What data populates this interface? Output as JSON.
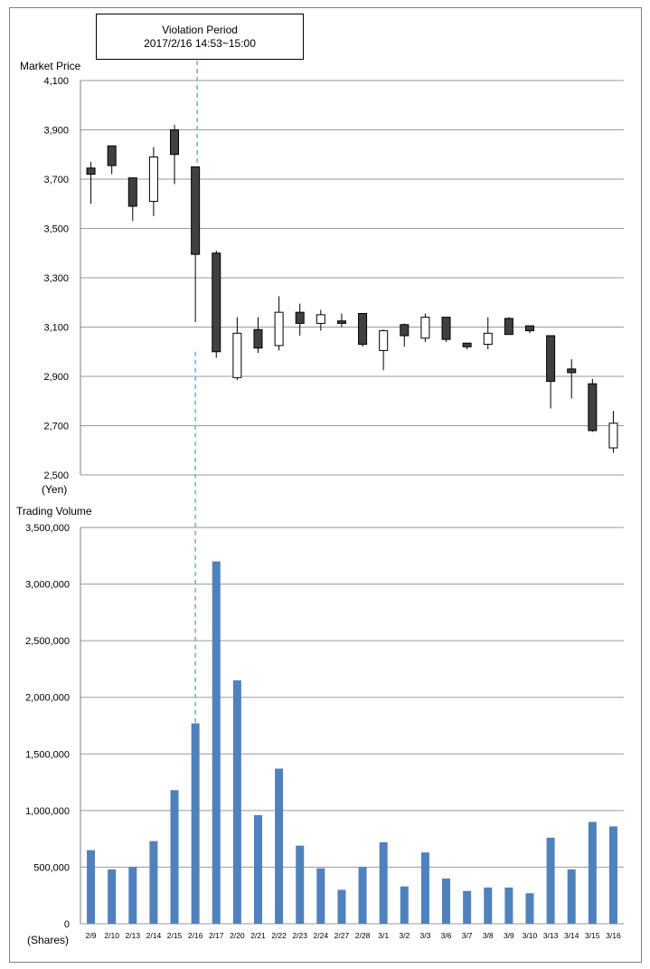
{
  "annotation": {
    "line1": "Violation Period",
    "line2": "2017/2/16  14:53~15:00"
  },
  "chart_data": [
    {
      "type": "candlestick",
      "ylabel": "Market Price",
      "yunit": "(Yen)",
      "ylim": [
        2500,
        4100
      ],
      "yticks": [
        2500,
        2700,
        2900,
        3100,
        3300,
        3500,
        3700,
        3900,
        4100
      ],
      "ytick_labels": [
        "2,500",
        "2,700",
        "2,900",
        "3,100",
        "3,300",
        "3,500",
        "3,700",
        "3,900",
        "4,100"
      ],
      "grid": true,
      "categories": [
        "2/9",
        "2/10",
        "2/13",
        "2/14",
        "2/15",
        "2/16",
        "2/17",
        "2/20",
        "2/21",
        "2/22",
        "2/23",
        "2/24",
        "2/27",
        "2/28",
        "3/1",
        "3/2",
        "3/3",
        "3/6",
        "3/7",
        "3/8",
        "3/9",
        "3/10",
        "3/13",
        "3/14",
        "3/15",
        "3/16"
      ],
      "ohlc": [
        {
          "open": 3745,
          "high": 3770,
          "low": 3600,
          "close": 3720
        },
        {
          "open": 3835,
          "high": 3835,
          "low": 3720,
          "close": 3755
        },
        {
          "open": 3705,
          "high": 3705,
          "low": 3530,
          "close": 3590
        },
        {
          "open": 3610,
          "high": 3830,
          "low": 3550,
          "close": 3790
        },
        {
          "open": 3900,
          "high": 3920,
          "low": 3680,
          "close": 3800
        },
        {
          "open": 3750,
          "high": 3750,
          "low": 3120,
          "close": 3395
        },
        {
          "open": 3400,
          "high": 3410,
          "low": 2975,
          "close": 3000
        },
        {
          "open": 2895,
          "high": 3140,
          "low": 2885,
          "close": 3075
        },
        {
          "open": 3090,
          "high": 3140,
          "low": 2995,
          "close": 3015
        },
        {
          "open": 3025,
          "high": 3225,
          "low": 3005,
          "close": 3160
        },
        {
          "open": 3160,
          "high": 3195,
          "low": 3065,
          "close": 3115
        },
        {
          "open": 3115,
          "high": 3170,
          "low": 3085,
          "close": 3150
        },
        {
          "open": 3125,
          "high": 3155,
          "low": 3100,
          "close": 3115
        },
        {
          "open": 3155,
          "high": 3155,
          "low": 3020,
          "close": 3030
        },
        {
          "open": 3005,
          "high": 3090,
          "low": 2925,
          "close": 3085
        },
        {
          "open": 3110,
          "high": 3115,
          "low": 3020,
          "close": 3065
        },
        {
          "open": 3055,
          "high": 3155,
          "low": 3040,
          "close": 3140
        },
        {
          "open": 3140,
          "high": 3140,
          "low": 3040,
          "close": 3050
        },
        {
          "open": 3035,
          "high": 3035,
          "low": 3010,
          "close": 3020
        },
        {
          "open": 3030,
          "high": 3140,
          "low": 3010,
          "close": 3075
        },
        {
          "open": 3135,
          "high": 3140,
          "low": 3070,
          "close": 3070
        },
        {
          "open": 3105,
          "high": 3105,
          "low": 3075,
          "close": 3085
        },
        {
          "open": 3065,
          "high": 3065,
          "low": 2770,
          "close": 2880
        },
        {
          "open": 2930,
          "high": 2970,
          "low": 2810,
          "close": 2915
        },
        {
          "open": 2870,
          "high": 2890,
          "low": 2675,
          "close": 2680
        },
        {
          "open": 2610,
          "high": 2760,
          "low": 2590,
          "close": 2710
        }
      ]
    },
    {
      "type": "bar",
      "ylabel": "Trading  Volume",
      "yunit": "(Shares)",
      "ylim": [
        0,
        3500000
      ],
      "yticks": [
        0,
        500000,
        1000000,
        1500000,
        2000000,
        2500000,
        3000000,
        3500000
      ],
      "ytick_labels": [
        "0",
        "500,000",
        "1,000,000",
        "1,500,000",
        "2,000,000",
        "2,500,000",
        "3,000,000",
        "3,500,000"
      ],
      "grid": true,
      "bar_color": "#4f81bd",
      "categories": [
        "2/9",
        "2/10",
        "2/13",
        "2/14",
        "2/15",
        "2/16",
        "2/17",
        "2/20",
        "2/21",
        "2/22",
        "2/23",
        "2/24",
        "2/27",
        "2/28",
        "3/1",
        "3/2",
        "3/3",
        "3/6",
        "3/7",
        "3/8",
        "3/9",
        "3/10",
        "3/13",
        "3/14",
        "3/15",
        "3/16"
      ],
      "values": [
        650000,
        480000,
        500000,
        730000,
        1180000,
        1770000,
        3200000,
        2150000,
        960000,
        1370000,
        690000,
        490000,
        300000,
        500000,
        720000,
        330000,
        630000,
        400000,
        290000,
        320000,
        320000,
        270000,
        760000,
        480000,
        900000,
        860000
      ]
    }
  ],
  "colors": {
    "candle_up_fill": "#ffffff",
    "candle_down_fill": "#404040",
    "candle_stroke": "#000000",
    "grid": "#9a9a9a",
    "violation_line": "#6fa8dc"
  }
}
